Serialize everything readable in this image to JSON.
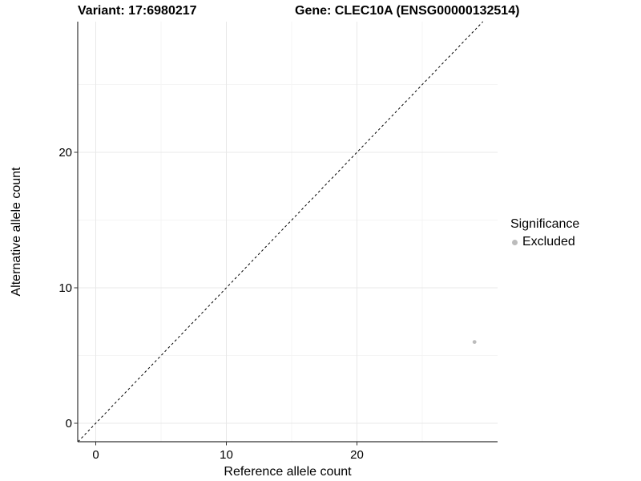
{
  "chart_data": {
    "type": "scatter",
    "titles": {
      "left": "Variant: 17:6980217",
      "right": "Gene: CLEC10A (ENSG00000132514)"
    },
    "xlabel": "Reference allele count",
    "ylabel": "Alternative allele count",
    "xlim": [
      -1.4,
      30.8
    ],
    "ylim": [
      -1.4,
      29.6
    ],
    "x_ticks": {
      "values": [
        0,
        10,
        20
      ],
      "labels": [
        "0",
        "10",
        "20"
      ]
    },
    "y_ticks": {
      "values": [
        0,
        10,
        20
      ],
      "labels": [
        "0",
        "10",
        "20"
      ]
    },
    "x_minor": [
      5,
      15,
      25
    ],
    "y_minor": [
      5,
      15,
      25
    ],
    "grid": "major and minor, light gray on white",
    "reference_line": {
      "slope": 1,
      "intercept": 0,
      "style": "dashed",
      "label": "identity line y = x"
    },
    "series": [
      {
        "name": "Excluded",
        "points": [
          {
            "x": 29,
            "y": 6
          }
        ]
      }
    ],
    "legend": {
      "title": "Significance",
      "position": "right",
      "entries": [
        {
          "label": "Excluded",
          "color": "#bcbcbc"
        }
      ]
    }
  },
  "colors": {
    "background": "#ffffff",
    "grid_major": "#e8e8e8",
    "grid_minor": "#f4f4f4",
    "axis_line": "#333333",
    "tick_mark": "#333333",
    "text": "#000000",
    "point": "#bcbcbc",
    "reference_line": "#000000"
  }
}
